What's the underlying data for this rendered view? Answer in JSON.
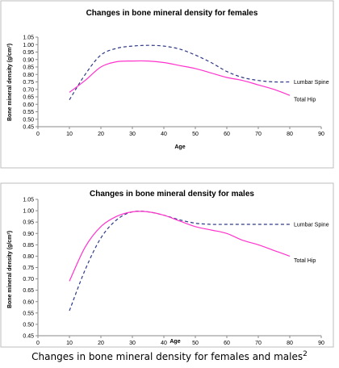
{
  "caption": {
    "text": "Changes in bone mineral density for females and males",
    "superscript": "2"
  },
  "chart_data": [
    {
      "type": "line",
      "title": "Changes in bone mineral density for females",
      "xlabel": "Age",
      "ylabel": "Bone mineral density (g/cm²)",
      "xlim": [
        0,
        90
      ],
      "ylim": [
        0.45,
        1.05
      ],
      "xticks": [
        "0",
        "10",
        "20",
        "30",
        "40",
        "50",
        "60",
        "70",
        "80",
        "90"
      ],
      "yticks": [
        "1.05",
        "1.00",
        "0.95",
        "0.90",
        "0.85",
        "0.80",
        "0.75",
        "0.70",
        "0.65",
        "0.60",
        "0.55",
        "0.50",
        "0.45"
      ],
      "grid": false,
      "legend": "inline labels at line ends",
      "series": [
        {
          "name": "Lumbar Spine",
          "style": "dashed",
          "color": "#2e3a87",
          "x": [
            10,
            15,
            20,
            25,
            30,
            35,
            40,
            45,
            50,
            55,
            60,
            65,
            70,
            75,
            80
          ],
          "y": [
            0.63,
            0.8,
            0.93,
            0.975,
            0.99,
            0.995,
            0.99,
            0.97,
            0.93,
            0.88,
            0.82,
            0.78,
            0.76,
            0.75,
            0.75
          ]
        },
        {
          "name": "Total Hip",
          "style": "solid",
          "color": "#ff33cc",
          "x": [
            10,
            15,
            20,
            25,
            30,
            35,
            40,
            45,
            50,
            55,
            60,
            65,
            70,
            75,
            80
          ],
          "y": [
            0.68,
            0.76,
            0.85,
            0.885,
            0.89,
            0.89,
            0.88,
            0.86,
            0.84,
            0.81,
            0.78,
            0.76,
            0.73,
            0.7,
            0.66
          ]
        }
      ]
    },
    {
      "type": "line",
      "title": "Changes in bone mineral density for males",
      "xlabel": "Age",
      "ylabel": "Bone mineral density (g/cm²)",
      "xlim": [
        0,
        90
      ],
      "ylim": [
        0.45,
        1.05
      ],
      "xticks": [
        "0",
        "10",
        "20",
        "30",
        "40",
        "50",
        "60",
        "70",
        "80",
        "90"
      ],
      "yticks": [
        "1.05",
        "1.00",
        "0.95",
        "0.90",
        "0.85",
        "0.80",
        "0.75",
        "0.70",
        "0.65",
        "0.60",
        "0.55",
        "0.50",
        "0.45"
      ],
      "grid": false,
      "legend": "inline labels at line ends",
      "series": [
        {
          "name": "Lumbar Spine",
          "style": "dashed",
          "color": "#2e3a87",
          "x": [
            10,
            15,
            20,
            25,
            30,
            35,
            40,
            45,
            50,
            55,
            60,
            65,
            70,
            75,
            80
          ],
          "y": [
            0.56,
            0.74,
            0.88,
            0.96,
            0.995,
            0.995,
            0.98,
            0.96,
            0.945,
            0.94,
            0.94,
            0.94,
            0.94,
            0.94,
            0.94
          ]
        },
        {
          "name": "Total Hip",
          "style": "solid",
          "color": "#ff33cc",
          "x": [
            10,
            15,
            20,
            25,
            30,
            35,
            40,
            45,
            50,
            55,
            60,
            65,
            70,
            75,
            80
          ],
          "y": [
            0.69,
            0.84,
            0.93,
            0.975,
            0.995,
            0.995,
            0.98,
            0.955,
            0.93,
            0.915,
            0.9,
            0.87,
            0.85,
            0.825,
            0.8
          ]
        }
      ]
    }
  ]
}
